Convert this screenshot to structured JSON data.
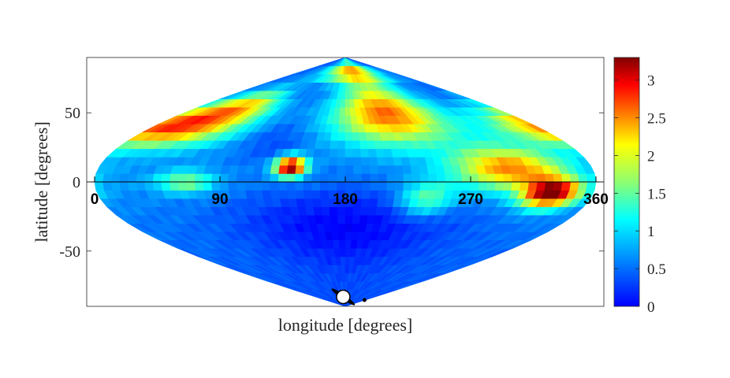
{
  "chart_data": {
    "type": "heatmap",
    "projection": "sinusoidal",
    "title": "",
    "xlabel": "longitude [degrees]",
    "ylabel": "latitude [degrees]",
    "xlim": [
      0,
      360
    ],
    "ylim": [
      -90,
      90
    ],
    "y_ticks": [
      "50",
      "0",
      "-50"
    ],
    "y_tick_values": [
      50,
      0,
      -50
    ],
    "equator_ticks": [
      "0",
      "90",
      "180",
      "270",
      "360"
    ],
    "equator_tick_values": [
      0,
      90,
      180,
      270,
      360
    ],
    "colorbar": {
      "colormap": "jet",
      "clim": [
        0,
        3.3
      ],
      "ticks": [
        "0",
        "0.5",
        "1",
        "1.5",
        "2",
        "2.5",
        "3"
      ],
      "tick_values": [
        0,
        0.5,
        1,
        1.5,
        2,
        2.5,
        3
      ]
    },
    "baseline_value": 0.9,
    "features": [
      {
        "lon": 20,
        "lat": 40,
        "lon_width": 55,
        "lat_width": 14,
        "value": 1.9
      },
      {
        "lon": 55,
        "lat": 55,
        "lon_width": 40,
        "lat_width": 12,
        "value": 1.2
      },
      {
        "lon": 140,
        "lat": 11,
        "lon_width": 11,
        "lat_width": 7,
        "value": 2.6
      },
      {
        "lon": 225,
        "lat": 50,
        "lon_width": 55,
        "lat_width": 22,
        "value": 1.8
      },
      {
        "lon": 200,
        "lat": 80,
        "lon_width": 100,
        "lat_width": 8,
        "value": 1.5
      },
      {
        "lon": 300,
        "lat": 10,
        "lon_width": 40,
        "lat_width": 15,
        "value": 1.6
      },
      {
        "lon": 330,
        "lat": -8,
        "lon_width": 20,
        "lat_width": 10,
        "value": 2.5
      },
      {
        "lon": 240,
        "lat": -12,
        "lon_width": 20,
        "lat_width": 12,
        "value": 0.8
      },
      {
        "lon": 180,
        "lat": -30,
        "lon_width": 90,
        "lat_width": 30,
        "value": -0.4
      },
      {
        "lon": 65,
        "lat": 0,
        "lon_width": 20,
        "lat_width": 8,
        "value": 0.8
      },
      {
        "lon": 120,
        "lat": 30,
        "lon_width": 30,
        "lat_width": 15,
        "value": -0.2
      }
    ],
    "colors": {
      "axes": "#262626",
      "equator_line": "#000000",
      "marker_fill": "#ffffff",
      "marker_edge": "#000000"
    },
    "marker": {
      "lon": 175,
      "lat": -86,
      "icon": "ringed-planet-icon"
    }
  }
}
